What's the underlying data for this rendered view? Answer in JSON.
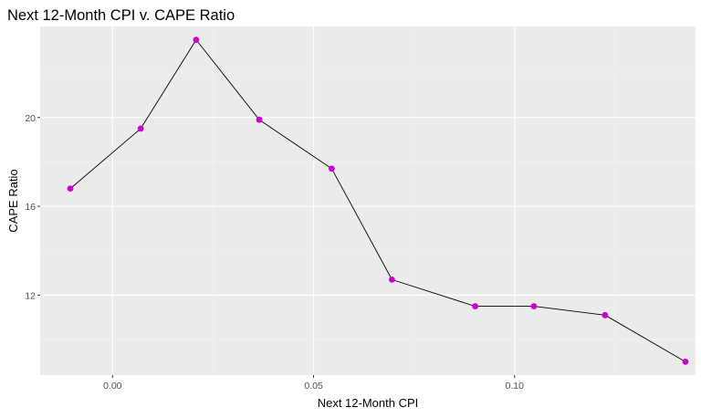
{
  "chart_data": {
    "type": "line",
    "title": "Next 12-Month CPI v. CAPE Ratio",
    "xlabel": "Next 12-Month CPI",
    "ylabel": "CAPE Ratio",
    "xlim": [
      -0.018,
      0.145
    ],
    "ylim": [
      8.4,
      24.1
    ],
    "x_ticks": [
      0.0,
      0.05,
      0.1
    ],
    "x_tick_labels": [
      "0.00",
      "0.05",
      "0.10"
    ],
    "x_minor": [
      -0.025,
      0.025,
      0.075,
      0.125
    ],
    "y_ticks": [
      12,
      16,
      20
    ],
    "y_tick_labels": [
      "12",
      "16",
      "20"
    ],
    "y_minor": [
      10,
      14,
      18,
      22
    ],
    "grid": true,
    "background": "#ebebeb",
    "series": [
      {
        "x": [
          -0.0105,
          0.007,
          0.0208,
          0.0365,
          0.0545,
          0.0695,
          0.0902,
          0.1048,
          0.1225,
          0.1425
        ],
        "y": [
          16.8,
          19.5,
          23.5,
          19.9,
          17.7,
          12.7,
          11.5,
          11.5,
          11.1,
          9.0
        ],
        "point_color": "#cc00cc",
        "line_color": "#000000"
      }
    ]
  }
}
